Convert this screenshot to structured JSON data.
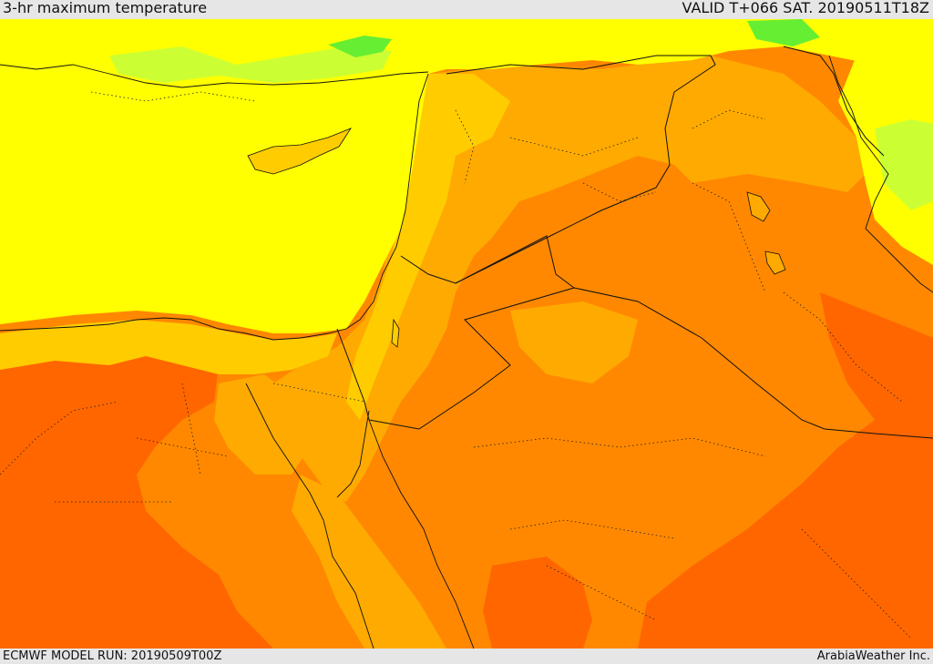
{
  "header": {
    "title": "3-hr maximum temperature",
    "valid": "VALID T+066 SAT. 20190511T18Z"
  },
  "footer": {
    "model_run": "ECMWF MODEL RUN: 20190509T00Z",
    "credit": "ArabiaWeather Inc."
  },
  "map": {
    "colors": {
      "green": "#66ee33",
      "yellow_green": "#ccff33",
      "yellow": "#ffff00",
      "light_orange": "#ffcc00",
      "orange": "#ffaa00",
      "dark_orange": "#ff8800",
      "red_orange": "#ff6600",
      "red": "#ff4400",
      "border": "#111111"
    }
  }
}
